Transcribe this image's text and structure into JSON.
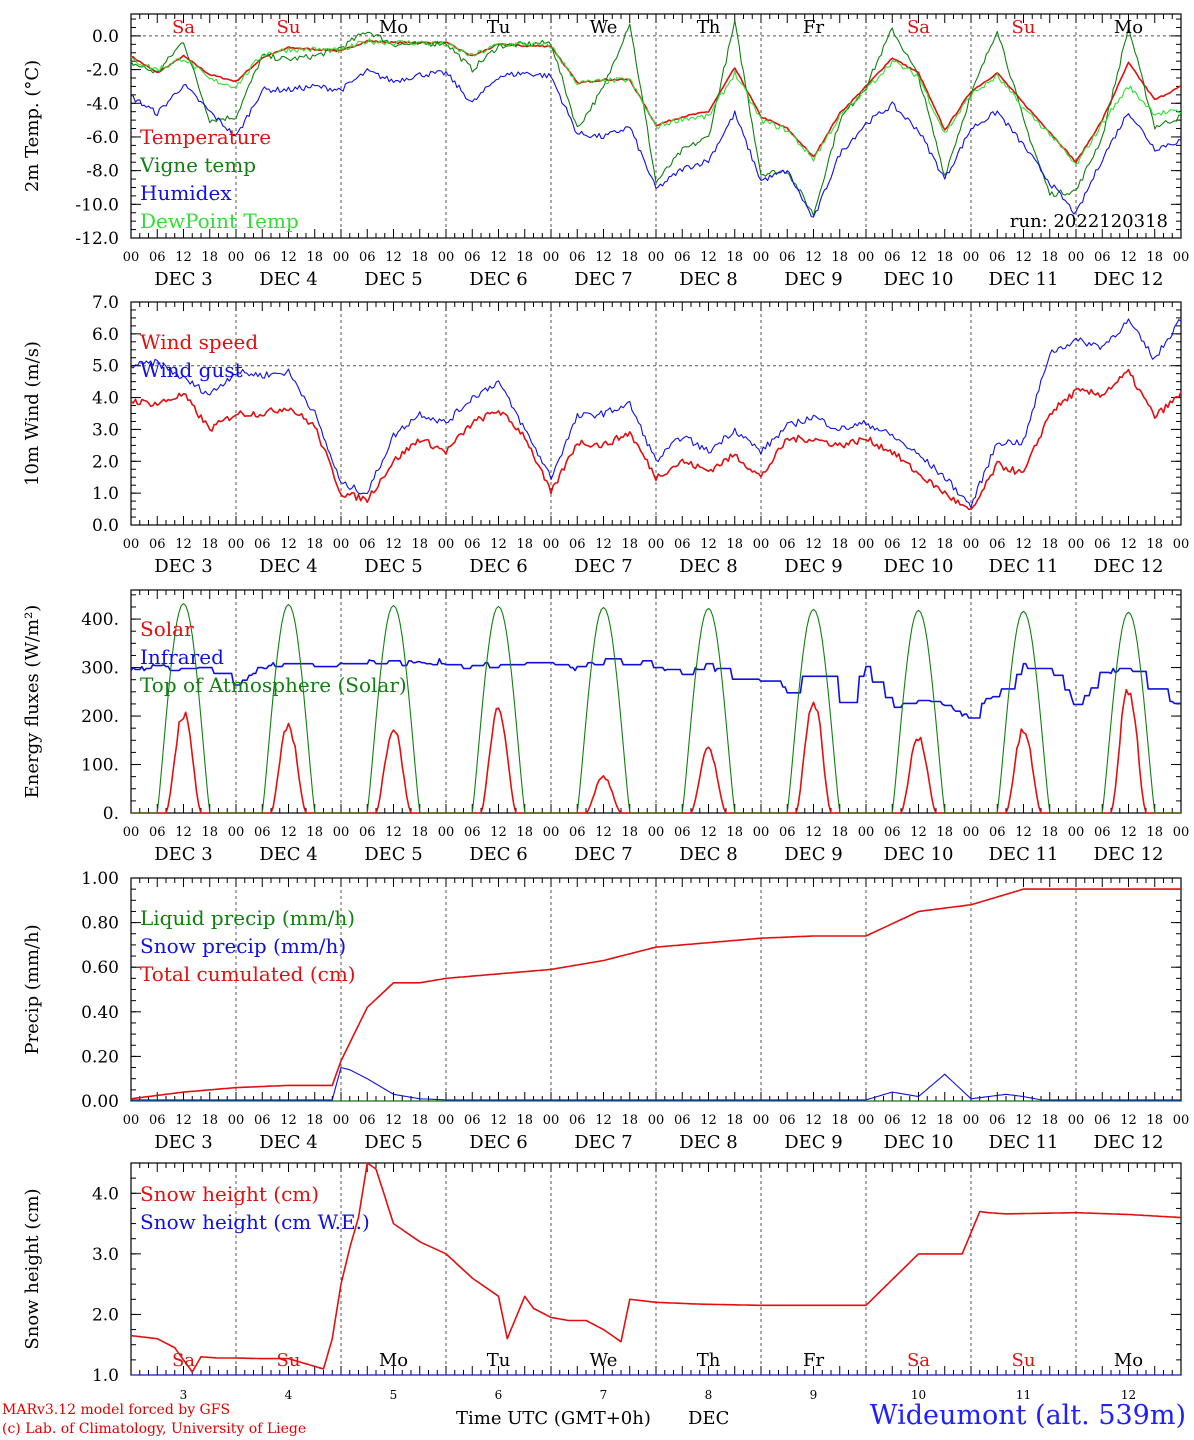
{
  "colors": {
    "red": "#e01010",
    "green": "#108010",
    "blue": "#1010e0",
    "lightgreen": "#30e030",
    "weekend": "#e01010",
    "axis": "#000000"
  },
  "days": [
    {
      "abbr": "Sa",
      "date": "DEC  3",
      "num": "3",
      "weekend": true
    },
    {
      "abbr": "Su",
      "date": "DEC  4",
      "num": "4",
      "weekend": true
    },
    {
      "abbr": "Mo",
      "date": "DEC  5",
      "num": "5",
      "weekend": false
    },
    {
      "abbr": "Tu",
      "date": "DEC  6",
      "num": "6",
      "weekend": false
    },
    {
      "abbr": "We",
      "date": "DEC  7",
      "num": "7",
      "weekend": false
    },
    {
      "abbr": "Th",
      "date": "DEC  8",
      "num": "8",
      "weekend": false
    },
    {
      "abbr": "Fr",
      "date": "DEC  9",
      "num": "9",
      "weekend": false
    },
    {
      "abbr": "Sa",
      "date": "DEC 10",
      "num": "10",
      "weekend": true
    },
    {
      "abbr": "Su",
      "date": "DEC 11",
      "num": "11",
      "weekend": true
    },
    {
      "abbr": "Mo",
      "date": "DEC 12",
      "num": "12",
      "weekend": false
    }
  ],
  "hour_ticks": [
    "00",
    "06",
    "12",
    "18"
  ],
  "hour_end": "00",
  "run_label": "run: 2022120318",
  "xlabel": "Time UTC (GMT+0h)",
  "xlabel_month": "DEC",
  "credits": [
    "MARv3.12 model forced by GFS",
    "(c) Lab. of Climatology, University of Liege"
  ],
  "station": "Wideumont (alt. 539m)",
  "chart_data": [
    {
      "type": "line",
      "ylabel": "2m Temp. (°C)",
      "ylim": [
        -12,
        1.3
      ],
      "yticks": [
        {
          "v": 0,
          "t": "0.0"
        },
        {
          "v": -2,
          "t": "-2.0"
        },
        {
          "v": -4,
          "t": "-4.0"
        },
        {
          "v": -6,
          "t": "-6.0"
        },
        {
          "v": -8,
          "t": "-8.0"
        },
        {
          "v": -10,
          "t": "-10.0"
        },
        {
          "v": -12,
          "t": "-12.0"
        }
      ],
      "refline": 0,
      "series": [
        {
          "name": "Temperature",
          "color": "red",
          "x": [
            0,
            6,
            12,
            18,
            24,
            30,
            36,
            42,
            48,
            54,
            60,
            66,
            72,
            78,
            84,
            90,
            96,
            102,
            108,
            114,
            120,
            126,
            132,
            138,
            144,
            150,
            156,
            162,
            168,
            174,
            180,
            186,
            192,
            198,
            204,
            210,
            216,
            222,
            228,
            234,
            240
          ],
          "values": [
            -1.2,
            -2.2,
            -1.2,
            -2.3,
            -2.7,
            -1.3,
            -0.7,
            -0.8,
            -0.9,
            -0.3,
            -0.4,
            -0.4,
            -0.4,
            -1.2,
            -0.5,
            -0.6,
            -0.6,
            -2.8,
            -2.6,
            -2.6,
            -5.3,
            -4.8,
            -4.5,
            -1.9,
            -4.8,
            -5.5,
            -7.2,
            -4.6,
            -3.0,
            -1.3,
            -2.2,
            -5.6,
            -3.3,
            -2.2,
            -4.0,
            -5.7,
            -7.5,
            -5.0,
            -1.6,
            -3.8,
            -3.0
          ]
        },
        {
          "name": "Vigne temp",
          "color": "green",
          "x": [
            0,
            6,
            12,
            18,
            24,
            30,
            36,
            42,
            48,
            54,
            60,
            66,
            72,
            78,
            84,
            90,
            96,
            102,
            108,
            114,
            120,
            126,
            132,
            138,
            144,
            150,
            156,
            162,
            168,
            174,
            180,
            186,
            192,
            198,
            204,
            210,
            216,
            222,
            228,
            234,
            240
          ],
          "values": [
            -1.6,
            -2.2,
            -0.3,
            -5.0,
            -4.8,
            -1.2,
            -1.4,
            -1.2,
            -0.7,
            0.3,
            -0.5,
            -0.5,
            -0.4,
            -2.0,
            -0.6,
            -0.5,
            -0.4,
            -5.5,
            -3.1,
            0.8,
            -8.7,
            -6.8,
            -6.0,
            0.8,
            -8.2,
            -8.0,
            -10.6,
            -5.0,
            -3.0,
            0.4,
            -2.4,
            -8.3,
            -3.5,
            0.4,
            -5.0,
            -9.4,
            -9.2,
            -6.0,
            0.5,
            -5.4,
            -4.8
          ]
        },
        {
          "name": "Humidex",
          "color": "blue",
          "x": [
            0,
            6,
            12,
            18,
            24,
            30,
            36,
            42,
            48,
            54,
            60,
            66,
            72,
            78,
            84,
            90,
            96,
            102,
            108,
            114,
            120,
            126,
            132,
            138,
            144,
            150,
            156,
            162,
            168,
            174,
            180,
            186,
            192,
            198,
            204,
            210,
            216,
            222,
            228,
            234,
            240
          ],
          "values": [
            -3.6,
            -4.6,
            -2.9,
            -4.5,
            -6.0,
            -3.2,
            -3.2,
            -3.0,
            -3.2,
            -2.1,
            -2.7,
            -2.3,
            -2.2,
            -4.0,
            -2.4,
            -2.2,
            -2.4,
            -5.8,
            -6.0,
            -5.4,
            -9.1,
            -7.9,
            -7.4,
            -4.6,
            -8.6,
            -8.0,
            -10.9,
            -7.0,
            -5.2,
            -4.1,
            -5.6,
            -8.5,
            -5.5,
            -4.5,
            -6.5,
            -8.7,
            -10.6,
            -7.3,
            -4.5,
            -6.7,
            -6.2
          ]
        },
        {
          "name": "DewPoint Temp",
          "color": "lightgreen",
          "x": [
            0,
            6,
            12,
            18,
            24,
            30,
            36,
            42,
            48,
            54,
            60,
            66,
            72,
            78,
            84,
            90,
            96,
            102,
            108,
            114,
            120,
            126,
            132,
            138,
            144,
            150,
            156,
            162,
            168,
            174,
            180,
            186,
            192,
            198,
            204,
            210,
            216,
            222,
            228,
            234,
            240
          ],
          "values": [
            -1.4,
            -2.0,
            -1.3,
            -2.6,
            -3.0,
            -1.1,
            -0.8,
            -0.8,
            -0.9,
            -0.3,
            -0.4,
            -0.4,
            -0.5,
            -1.2,
            -0.5,
            -0.5,
            -0.6,
            -2.8,
            -2.7,
            -2.6,
            -5.4,
            -4.9,
            -4.8,
            -2.2,
            -5.0,
            -5.6,
            -7.3,
            -4.8,
            -3.2,
            -1.5,
            -2.4,
            -5.8,
            -3.5,
            -2.4,
            -4.3,
            -5.8,
            -7.7,
            -5.2,
            -3.0,
            -4.6,
            -4.5
          ]
        }
      ]
    },
    {
      "type": "line",
      "ylabel": "10m Wind (m/s)",
      "ylim": [
        0,
        7
      ],
      "yticks": [
        {
          "v": 0,
          "t": "0.0"
        },
        {
          "v": 1,
          "t": "1.0"
        },
        {
          "v": 2,
          "t": "2.0"
        },
        {
          "v": 3,
          "t": "3.0"
        },
        {
          "v": 4,
          "t": "4.0"
        },
        {
          "v": 5,
          "t": "5.0"
        },
        {
          "v": 6,
          "t": "6.0"
        },
        {
          "v": 7,
          "t": "7.0"
        }
      ],
      "refline": 5,
      "series": [
        {
          "name": "Wind speed",
          "color": "red",
          "x": [
            0,
            6,
            12,
            18,
            24,
            30,
            36,
            42,
            48,
            54,
            60,
            66,
            72,
            78,
            84,
            90,
            96,
            102,
            108,
            114,
            120,
            126,
            132,
            138,
            144,
            150,
            156,
            162,
            168,
            174,
            180,
            186,
            192,
            198,
            204,
            210,
            216,
            222,
            228,
            234,
            240
          ],
          "values": [
            3.9,
            3.8,
            4.1,
            3.0,
            3.5,
            3.5,
            3.7,
            3.1,
            1.0,
            0.8,
            2.0,
            2.7,
            2.3,
            3.2,
            3.6,
            2.8,
            1.0,
            2.6,
            2.5,
            2.9,
            1.5,
            2.0,
            1.7,
            2.2,
            1.5,
            2.7,
            2.7,
            2.5,
            2.7,
            2.3,
            1.6,
            1.0,
            0.4,
            1.9,
            1.6,
            3.5,
            4.2,
            4.1,
            4.8,
            3.4,
            4.1
          ]
        },
        {
          "name": "Wind gust",
          "color": "blue",
          "x": [
            0,
            6,
            12,
            18,
            24,
            30,
            36,
            42,
            48,
            54,
            60,
            66,
            72,
            78,
            84,
            90,
            96,
            102,
            108,
            114,
            120,
            126,
            132,
            138,
            144,
            150,
            156,
            162,
            168,
            174,
            180,
            186,
            192,
            198,
            204,
            210,
            216,
            222,
            228,
            234,
            240
          ],
          "values": [
            5.0,
            5.1,
            4.6,
            4.1,
            4.8,
            4.7,
            4.8,
            3.5,
            1.3,
            1.0,
            2.8,
            3.5,
            3.2,
            4.0,
            4.5,
            3.0,
            1.5,
            3.4,
            3.5,
            3.8,
            2.0,
            2.8,
            2.3,
            3.0,
            2.3,
            3.1,
            3.4,
            3.0,
            3.2,
            2.8,
            2.2,
            1.5,
            0.6,
            2.6,
            2.6,
            5.4,
            5.8,
            5.6,
            6.4,
            5.2,
            6.5
          ]
        }
      ]
    },
    {
      "type": "line",
      "ylabel": "Energy fluxes (W/m²)",
      "ylim": [
        0,
        460
      ],
      "yticks": [
        {
          "v": 0,
          "t": "0."
        },
        {
          "v": 100,
          "t": "100."
        },
        {
          "v": 200,
          "t": "200."
        },
        {
          "v": 300,
          "t": "300."
        },
        {
          "v": 400,
          "t": "400."
        }
      ],
      "series": [
        {
          "name": "Solar",
          "color": "red",
          "peaks": [
            205,
            180,
            175,
            220,
            75,
            130,
            235,
            155,
            170,
            255
          ]
        },
        {
          "name": "Infrared",
          "color": "blue",
          "x": [
            0,
            6,
            12,
            18,
            24,
            30,
            36,
            42,
            48,
            54,
            60,
            66,
            72,
            78,
            84,
            90,
            96,
            102,
            108,
            114,
            120,
            126,
            132,
            138,
            144,
            150,
            156,
            162,
            168,
            174,
            180,
            186,
            192,
            198,
            204,
            210,
            216,
            222,
            228,
            234,
            240
          ],
          "values": [
            300,
            300,
            300,
            290,
            265,
            300,
            310,
            305,
            310,
            310,
            310,
            312,
            312,
            300,
            310,
            305,
            305,
            300,
            312,
            312,
            305,
            280,
            305,
            280,
            270,
            250,
            300,
            225,
            295,
            220,
            230,
            220,
            200,
            250,
            305,
            300,
            220,
            290,
            300,
            235,
            220
          ]
        },
        {
          "name": "Top of Atmosphere (Solar)",
          "color": "green",
          "peak": 432
        }
      ]
    },
    {
      "type": "line",
      "ylabel": "Precip (mm/h)",
      "ylim": [
        0,
        1.0
      ],
      "yticks": [
        {
          "v": 0,
          "t": "0.00"
        },
        {
          "v": 0.2,
          "t": "0.20"
        },
        {
          "v": 0.4,
          "t": "0.40"
        },
        {
          "v": 0.6,
          "t": "0.60"
        },
        {
          "v": 0.8,
          "t": "0.80"
        },
        {
          "v": 1.0,
          "t": "1.00"
        }
      ],
      "series": [
        {
          "name": "Liquid precip (mm/h)",
          "color": "green",
          "x": [
            0,
            240
          ],
          "values": [
            0,
            0
          ]
        },
        {
          "name": "Snow precip (mm/h)",
          "color": "blue",
          "x": [
            0,
            46,
            48,
            50,
            54,
            60,
            66,
            72,
            96,
            120,
            168,
            174,
            180,
            186,
            192,
            200,
            204,
            208,
            216,
            222,
            240
          ],
          "values": [
            0.005,
            0.005,
            0.15,
            0.14,
            0.1,
            0.03,
            0.01,
            0.005,
            0.005,
            0.005,
            0.005,
            0.04,
            0.02,
            0.12,
            0.01,
            0.03,
            0.02,
            0.005,
            0.005,
            0.005,
            0.005
          ]
        },
        {
          "name": "Total cumulated (cm)",
          "color": "red",
          "x": [
            0,
            12,
            24,
            36,
            46,
            48,
            54,
            60,
            66,
            72,
            84,
            96,
            108,
            120,
            132,
            144,
            156,
            168,
            180,
            192,
            204,
            216,
            228,
            240
          ],
          "values": [
            0.01,
            0.04,
            0.06,
            0.07,
            0.07,
            0.18,
            0.42,
            0.53,
            0.53,
            0.55,
            0.57,
            0.59,
            0.63,
            0.69,
            0.71,
            0.73,
            0.74,
            0.74,
            0.85,
            0.88,
            0.95,
            0.95,
            0.95,
            0.95
          ]
        }
      ]
    },
    {
      "type": "line",
      "ylabel": "Snow height (cm)",
      "ylim": [
        1.0,
        4.5
      ],
      "yticks": [
        {
          "v": 1,
          "t": "1.0"
        },
        {
          "v": 2,
          "t": "2.0"
        },
        {
          "v": 3,
          "t": "3.0"
        },
        {
          "v": 4,
          "t": "4.0"
        }
      ],
      "series": [
        {
          "name": "Snow height (cm)",
          "color": "red",
          "x": [
            0,
            6,
            10,
            14,
            16,
            20,
            24,
            30,
            36,
            44,
            46,
            48,
            50,
            52,
            54,
            56,
            60,
            66,
            72,
            78,
            84,
            86,
            90,
            92,
            96,
            100,
            104,
            108,
            112,
            114,
            120,
            130,
            144,
            168,
            180,
            182,
            190,
            194,
            196,
            200,
            216,
            228,
            240
          ],
          "values": [
            1.65,
            1.6,
            1.45,
            1.05,
            1.3,
            1.28,
            1.28,
            1.27,
            1.27,
            1.1,
            1.6,
            2.5,
            3.1,
            3.6,
            4.5,
            4.4,
            3.5,
            3.2,
            3.0,
            2.6,
            2.3,
            1.6,
            2.3,
            2.1,
            1.95,
            1.9,
            1.9,
            1.75,
            1.55,
            2.25,
            2.2,
            2.17,
            2.15,
            2.15,
            3.0,
            3.0,
            3.0,
            3.7,
            3.68,
            3.66,
            3.68,
            3.65,
            3.6
          ]
        },
        {
          "name": "Snow height (cm W.E.)",
          "color": "blue",
          "x": [
            0,
            240
          ],
          "values": [
            1.0,
            1.0
          ]
        }
      ]
    }
  ]
}
